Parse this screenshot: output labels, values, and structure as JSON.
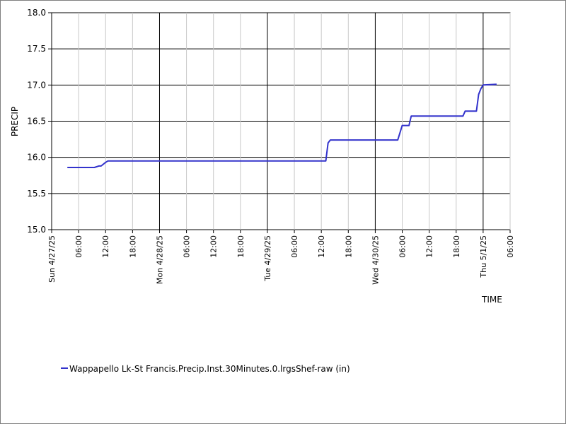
{
  "chart_data": {
    "type": "line",
    "xlabel": "TIME",
    "ylabel": "PRECIP",
    "ylim": [
      15.0,
      18.0
    ],
    "y_ticks": [
      "15.0",
      "15.5",
      "16.0",
      "16.5",
      "17.0",
      "17.5",
      "18.0"
    ],
    "xlim": [
      "2025-04-27T00:00",
      "2025-05-01T06:00"
    ],
    "x_ticks": [
      {
        "t": "2025-04-27T00:00",
        "label": "Sun 4/27/25",
        "major": true
      },
      {
        "t": "2025-04-27T06:00",
        "label": "06:00",
        "major": false
      },
      {
        "t": "2025-04-27T12:00",
        "label": "12:00",
        "major": false
      },
      {
        "t": "2025-04-27T18:00",
        "label": "18:00",
        "major": false
      },
      {
        "t": "2025-04-28T00:00",
        "label": "Mon 4/28/25",
        "major": true
      },
      {
        "t": "2025-04-28T06:00",
        "label": "06:00",
        "major": false
      },
      {
        "t": "2025-04-28T12:00",
        "label": "12:00",
        "major": false
      },
      {
        "t": "2025-04-28T18:00",
        "label": "18:00",
        "major": false
      },
      {
        "t": "2025-04-29T00:00",
        "label": "Tue 4/29/25",
        "major": true
      },
      {
        "t": "2025-04-29T06:00",
        "label": "06:00",
        "major": false
      },
      {
        "t": "2025-04-29T12:00",
        "label": "12:00",
        "major": false
      },
      {
        "t": "2025-04-29T18:00",
        "label": "18:00",
        "major": false
      },
      {
        "t": "2025-04-30T00:00",
        "label": "Wed 4/30/25",
        "major": true
      },
      {
        "t": "2025-04-30T06:00",
        "label": "06:00",
        "major": false
      },
      {
        "t": "2025-04-30T12:00",
        "label": "12:00",
        "major": false
      },
      {
        "t": "2025-04-30T18:00",
        "label": "18:00",
        "major": false
      },
      {
        "t": "2025-05-01T00:00",
        "label": "Thu 5/1/25",
        "major": true
      },
      {
        "t": "2025-05-01T06:00",
        "label": "06:00",
        "major": false
      }
    ],
    "grid": true,
    "legend_position": "bottom-left",
    "series": [
      {
        "name": "Wappapello Lk-St Francis.Precip.Inst.30Minutes.0.lrgsShef-raw (in)",
        "color": "#3333cc",
        "points": [
          [
            "2025-04-27T03:30",
            15.86
          ],
          [
            "2025-04-27T09:30",
            15.86
          ],
          [
            "2025-04-27T10:30",
            15.88
          ],
          [
            "2025-04-27T11:00",
            15.88
          ],
          [
            "2025-04-27T12:00",
            15.93
          ],
          [
            "2025-04-27T12:30",
            15.95
          ],
          [
            "2025-04-29T13:00",
            15.95
          ],
          [
            "2025-04-29T13:30",
            16.2
          ],
          [
            "2025-04-29T14:00",
            16.24
          ],
          [
            "2025-04-30T05:00",
            16.24
          ],
          [
            "2025-04-30T06:00",
            16.44
          ],
          [
            "2025-04-30T07:30",
            16.44
          ],
          [
            "2025-04-30T08:00",
            16.57
          ],
          [
            "2025-04-30T19:30",
            16.57
          ],
          [
            "2025-04-30T20:00",
            16.64
          ],
          [
            "2025-04-30T22:30",
            16.64
          ],
          [
            "2025-04-30T23:00",
            16.87
          ],
          [
            "2025-04-30T23:30",
            16.95
          ],
          [
            "2025-05-01T00:00",
            17.0
          ],
          [
            "2025-05-01T03:00",
            17.01
          ]
        ]
      }
    ]
  }
}
